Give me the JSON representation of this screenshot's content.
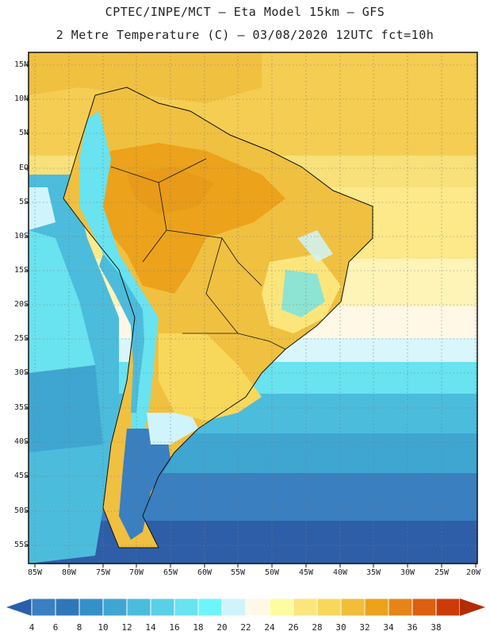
{
  "header": {
    "line1": "CPTEC/INPE/MCT –  Eta Model 15km – GFS",
    "line2": "2 Metre Temperature (C) – 03/08/2020 12UTC fct=10h"
  },
  "axes": {
    "lat_labels": [
      "15N",
      "10N",
      "5N",
      "EQ",
      "5S",
      "10S",
      "15S",
      "20S",
      "25S",
      "30S",
      "35S",
      "40S",
      "45S",
      "50S",
      "55S"
    ],
    "lon_labels": [
      "85W",
      "80W",
      "75W",
      "70W",
      "65W",
      "60W",
      "55W",
      "50W",
      "45W",
      "40W",
      "35W",
      "30W",
      "25W",
      "20W"
    ]
  },
  "colorbar": {
    "labels": [
      "4",
      "6",
      "8",
      "10",
      "12",
      "14",
      "16",
      "18",
      "20",
      "22",
      "24",
      "26",
      "28",
      "30",
      "32",
      "34",
      "36",
      "38"
    ],
    "colors": [
      "#3a7fc0",
      "#2f78b8",
      "#3590c8",
      "#3fa6d2",
      "#4cbcdc",
      "#5ad0e6",
      "#68e3ef",
      "#6cf6fb",
      "#cff4fc",
      "#fff8e6",
      "#fefca0",
      "#fce67c",
      "#f8d85a",
      "#f0be38",
      "#eca21a",
      "#e68418",
      "#dc6010",
      "#cc3c08"
    ],
    "low_color": "#2a5faa",
    "high_color": "#b42c04"
  }
}
